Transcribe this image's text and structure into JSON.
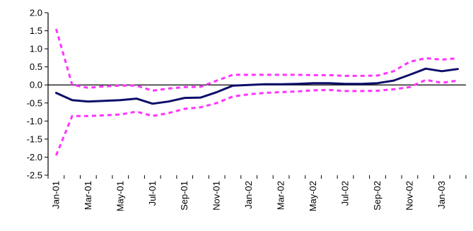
{
  "chart_data": {
    "type": "line",
    "title": "",
    "xlabel": "",
    "ylabel": "",
    "ylim": [
      -2.5,
      2.0
    ],
    "yticks": [
      "2.0",
      "1.5",
      "1.0",
      "0.5",
      "0.0",
      "-0.5",
      "-1.0",
      "-1.5",
      "-2.0",
      "-2.5"
    ],
    "ytick_values": [
      2.0,
      1.5,
      1.0,
      0.5,
      0.0,
      -0.5,
      -1.0,
      -1.5,
      -2.0,
      -2.5
    ],
    "x": [
      "Jan-01",
      "Feb-01",
      "Mar-01",
      "Apr-01",
      "May-01",
      "Jun-01",
      "Jul-01",
      "Aug-01",
      "Sep-01",
      "Oct-01",
      "Nov-01",
      "Dec-01",
      "Jan-02",
      "Feb-02",
      "Mar-02",
      "Apr-02",
      "May-02",
      "Jun-02",
      "Jul-02",
      "Aug-02",
      "Sep-02",
      "Oct-02",
      "Nov-02",
      "Dec-02",
      "Jan-03",
      "Feb-03"
    ],
    "xtick_labels": [
      "Jan-01",
      "Mar-01",
      "May-01",
      "Jul-01",
      "Sep-01",
      "Nov-01",
      "Jan-02",
      "Mar-02",
      "May-02",
      "Jul-02",
      "Sep-02",
      "Nov-02",
      "Jan-03"
    ],
    "grid": false,
    "zero_line": true,
    "series": [
      {
        "role": "estimate",
        "style": "solid",
        "color": "#0d0d6b",
        "values": [
          -0.22,
          -0.42,
          -0.46,
          -0.44,
          -0.42,
          -0.38,
          -0.52,
          -0.46,
          -0.36,
          -0.35,
          -0.2,
          -0.02,
          0.0,
          0.02,
          0.02,
          0.03,
          0.05,
          0.05,
          0.03,
          0.03,
          0.05,
          0.12,
          0.28,
          0.45,
          0.38,
          0.44
        ]
      },
      {
        "role": "upper-band",
        "style": "dashed",
        "color": "#ff33ff",
        "values": [
          1.55,
          0.0,
          -0.08,
          -0.04,
          -0.02,
          -0.02,
          -0.16,
          -0.1,
          -0.06,
          -0.05,
          0.12,
          0.28,
          0.28,
          0.28,
          0.28,
          0.28,
          0.27,
          0.27,
          0.25,
          0.25,
          0.26,
          0.38,
          0.64,
          0.74,
          0.7,
          0.74
        ]
      },
      {
        "role": "lower-band",
        "style": "dashed",
        "color": "#ff33ff",
        "values": [
          -1.95,
          -0.86,
          -0.86,
          -0.84,
          -0.82,
          -0.74,
          -0.86,
          -0.78,
          -0.66,
          -0.62,
          -0.5,
          -0.32,
          -0.26,
          -0.22,
          -0.2,
          -0.18,
          -0.15,
          -0.14,
          -0.17,
          -0.17,
          -0.16,
          -0.12,
          -0.06,
          0.14,
          0.06,
          0.12
        ]
      }
    ]
  }
}
